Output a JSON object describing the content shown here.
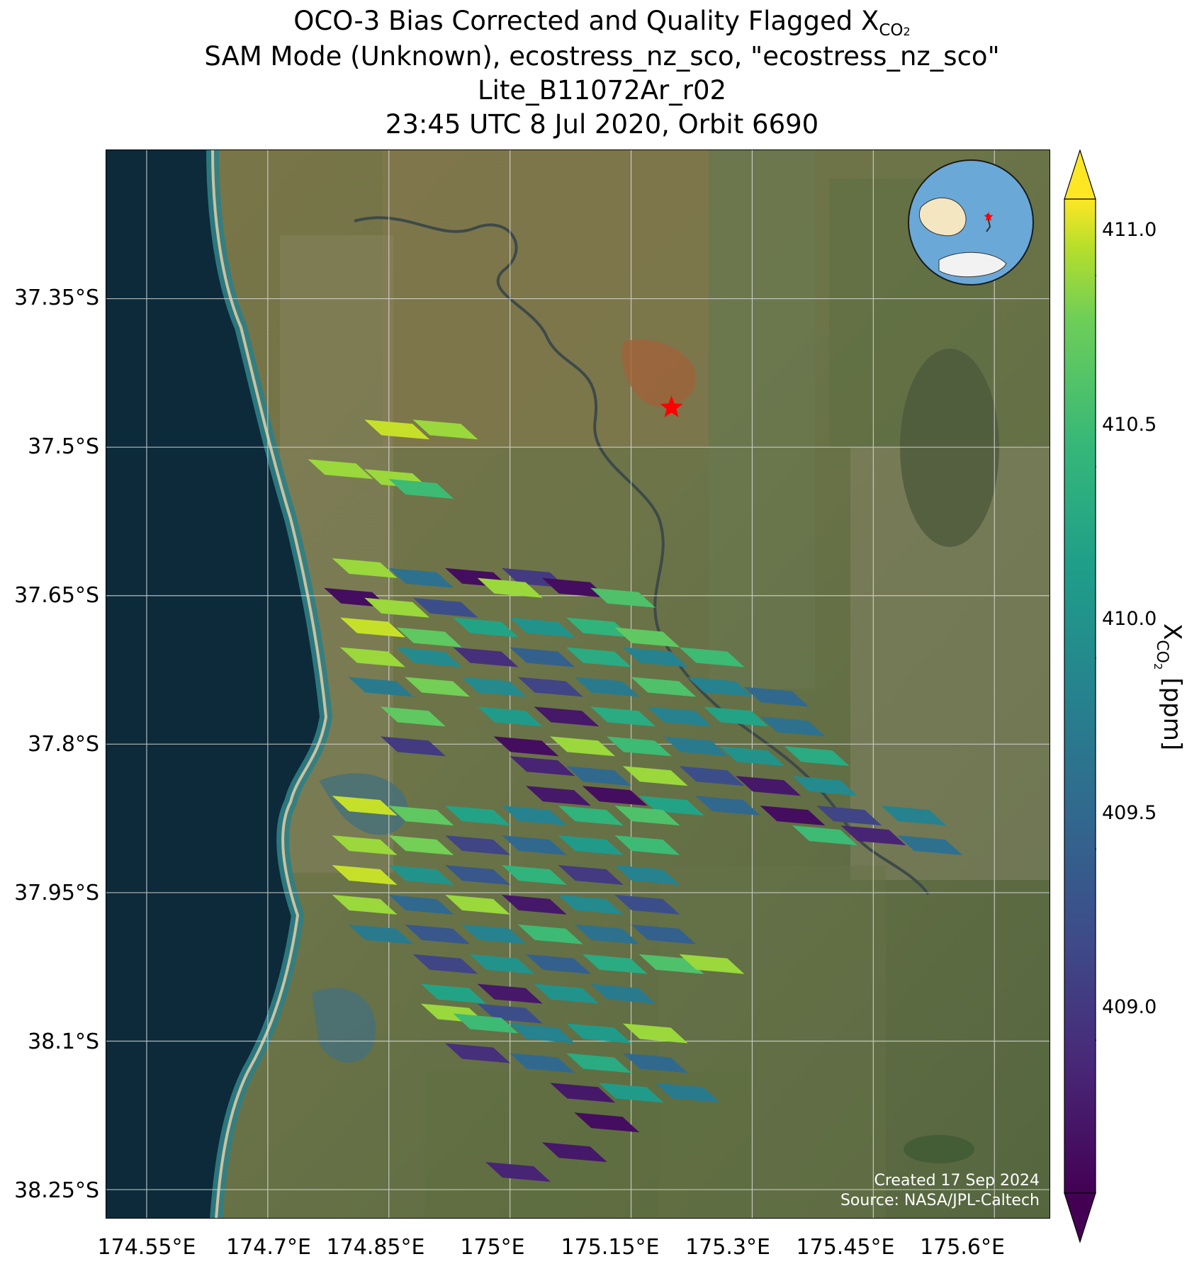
{
  "figure": {
    "title_line1_prefix": "OCO-3 Bias Corrected and Quality Flagged X",
    "title_line1_sub": "CO",
    "title_line1_sub2": "2",
    "title_line2": "SAM Mode (Unknown), ecostress_nz_sco, \"ecostress_nz_sco\"",
    "title_line3": "Lite_B11072Ar_r02",
    "title_line4": "23:45 UTC 8 Jul 2020, Orbit 6690"
  },
  "map": {
    "lat_labels": [
      "37.35°S",
      "37.5°S",
      "37.65°S",
      "37.8°S",
      "37.95°S",
      "38.1°S",
      "38.25°S"
    ],
    "lon_labels": [
      "174.55°E",
      "174.7°E",
      "174.85°E",
      "175°E",
      "175.15°E",
      "175.3°E",
      "175.45°E",
      "175.6°E"
    ],
    "credit_line1": "Created 17 Sep 2024",
    "credit_line2": "Source: NASA/JPL-Caltech",
    "target_marker": "red-star",
    "colors": {
      "ocean": "#0c2a3a",
      "coast": "#2f7f86",
      "land": "#6f7a4e",
      "target": "#ff0000"
    }
  },
  "colorbar": {
    "ticks": [
      "411.0",
      "410.5",
      "410.0",
      "409.5",
      "409.0"
    ],
    "label_prefix": "X",
    "label_sub": "CO",
    "label_sub2": "2",
    "label_suffix": " [ppm]",
    "colormap": "viridis",
    "extend": "both"
  },
  "chart_data": {
    "type": "heatmap",
    "variable": "XCO2",
    "units": "ppm",
    "vmin": 408.6,
    "vmax": 411.2,
    "lon_range": [
      174.5,
      175.67
    ],
    "lat_range": [
      -38.28,
      -37.2
    ],
    "target": {
      "lon": 175.2,
      "lat": -37.46
    },
    "soundings": [
      {
        "lon": 174.86,
        "lat": -37.48,
        "xco2": 411.1
      },
      {
        "lon": 174.92,
        "lat": -37.48,
        "xco2": 411.0
      },
      {
        "lon": 174.79,
        "lat": -37.52,
        "xco2": 411.0
      },
      {
        "lon": 174.86,
        "lat": -37.53,
        "xco2": 411.0
      },
      {
        "lon": 174.89,
        "lat": -37.54,
        "xco2": 410.6
      },
      {
        "lon": 174.82,
        "lat": -37.62,
        "xco2": 411.0
      },
      {
        "lon": 174.89,
        "lat": -37.63,
        "xco2": 409.7
      },
      {
        "lon": 174.96,
        "lat": -37.63,
        "xco2": 408.7
      },
      {
        "lon": 175.03,
        "lat": -37.63,
        "xco2": 409.1
      },
      {
        "lon": 175.0,
        "lat": -37.64,
        "xco2": 411.0
      },
      {
        "lon": 175.08,
        "lat": -37.64,
        "xco2": 408.7
      },
      {
        "lon": 175.14,
        "lat": -37.65,
        "xco2": 410.7
      },
      {
        "lon": 174.81,
        "lat": -37.65,
        "xco2": 408.7
      },
      {
        "lon": 174.86,
        "lat": -37.66,
        "xco2": 411.0
      },
      {
        "lon": 174.92,
        "lat": -37.66,
        "xco2": 409.3
      },
      {
        "lon": 174.83,
        "lat": -37.68,
        "xco2": 411.1
      },
      {
        "lon": 174.9,
        "lat": -37.69,
        "xco2": 410.8
      },
      {
        "lon": 174.97,
        "lat": -37.68,
        "xco2": 410.3
      },
      {
        "lon": 175.04,
        "lat": -37.68,
        "xco2": 410.1
      },
      {
        "lon": 175.11,
        "lat": -37.68,
        "xco2": 410.5
      },
      {
        "lon": 175.17,
        "lat": -37.69,
        "xco2": 410.8
      },
      {
        "lon": 174.83,
        "lat": -37.71,
        "xco2": 411.0
      },
      {
        "lon": 174.9,
        "lat": -37.71,
        "xco2": 410.0
      },
      {
        "lon": 174.97,
        "lat": -37.71,
        "xco2": 409.0
      },
      {
        "lon": 175.04,
        "lat": -37.71,
        "xco2": 409.5
      },
      {
        "lon": 175.11,
        "lat": -37.71,
        "xco2": 410.4
      },
      {
        "lon": 175.18,
        "lat": -37.71,
        "xco2": 409.9
      },
      {
        "lon": 175.25,
        "lat": -37.71,
        "xco2": 410.6
      },
      {
        "lon": 174.84,
        "lat": -37.74,
        "xco2": 409.8
      },
      {
        "lon": 174.91,
        "lat": -37.74,
        "xco2": 410.9
      },
      {
        "lon": 174.98,
        "lat": -37.74,
        "xco2": 410.0
      },
      {
        "lon": 175.05,
        "lat": -37.74,
        "xco2": 409.2
      },
      {
        "lon": 175.12,
        "lat": -37.74,
        "xco2": 409.8
      },
      {
        "lon": 175.19,
        "lat": -37.74,
        "xco2": 410.7
      },
      {
        "lon": 175.26,
        "lat": -37.74,
        "xco2": 409.9
      },
      {
        "lon": 175.33,
        "lat": -37.75,
        "xco2": 409.6
      },
      {
        "lon": 174.88,
        "lat": -37.77,
        "xco2": 410.8
      },
      {
        "lon": 175.0,
        "lat": -37.77,
        "xco2": 410.2
      },
      {
        "lon": 175.07,
        "lat": -37.77,
        "xco2": 408.8
      },
      {
        "lon": 175.14,
        "lat": -37.77,
        "xco2": 410.4
      },
      {
        "lon": 175.21,
        "lat": -37.77,
        "xco2": 409.9
      },
      {
        "lon": 175.28,
        "lat": -37.77,
        "xco2": 410.3
      },
      {
        "lon": 175.35,
        "lat": -37.78,
        "xco2": 409.7
      },
      {
        "lon": 174.88,
        "lat": -37.8,
        "xco2": 409.1
      },
      {
        "lon": 175.02,
        "lat": -37.8,
        "xco2": 408.7
      },
      {
        "lon": 175.09,
        "lat": -37.8,
        "xco2": 411.0
      },
      {
        "lon": 175.16,
        "lat": -37.8,
        "xco2": 410.6
      },
      {
        "lon": 175.23,
        "lat": -37.8,
        "xco2": 409.8
      },
      {
        "lon": 175.3,
        "lat": -37.81,
        "xco2": 410.1
      },
      {
        "lon": 175.38,
        "lat": -37.81,
        "xco2": 410.4
      },
      {
        "lon": 175.04,
        "lat": -37.82,
        "xco2": 408.9
      },
      {
        "lon": 175.11,
        "lat": -37.83,
        "xco2": 409.6
      },
      {
        "lon": 175.18,
        "lat": -37.83,
        "xco2": 411.0
      },
      {
        "lon": 175.25,
        "lat": -37.83,
        "xco2": 409.3
      },
      {
        "lon": 175.32,
        "lat": -37.84,
        "xco2": 408.8
      },
      {
        "lon": 175.39,
        "lat": -37.84,
        "xco2": 410.0
      },
      {
        "lon": 175.06,
        "lat": -37.85,
        "xco2": 408.8
      },
      {
        "lon": 175.13,
        "lat": -37.85,
        "xco2": 408.7
      },
      {
        "lon": 175.2,
        "lat": -37.86,
        "xco2": 410.3
      },
      {
        "lon": 175.27,
        "lat": -37.86,
        "xco2": 409.6
      },
      {
        "lon": 175.35,
        "lat": -37.87,
        "xco2": 408.7
      },
      {
        "lon": 175.42,
        "lat": -37.87,
        "xco2": 409.2
      },
      {
        "lon": 175.5,
        "lat": -37.87,
        "xco2": 409.9
      },
      {
        "lon": 175.39,
        "lat": -37.89,
        "xco2": 410.6
      },
      {
        "lon": 175.45,
        "lat": -37.89,
        "xco2": 408.9
      },
      {
        "lon": 175.52,
        "lat": -37.9,
        "xco2": 409.7
      },
      {
        "lon": 174.82,
        "lat": -37.86,
        "xco2": 411.1
      },
      {
        "lon": 174.89,
        "lat": -37.87,
        "xco2": 410.8
      },
      {
        "lon": 174.96,
        "lat": -37.87,
        "xco2": 410.3
      },
      {
        "lon": 175.03,
        "lat": -37.87,
        "xco2": 409.9
      },
      {
        "lon": 175.1,
        "lat": -37.87,
        "xco2": 410.5
      },
      {
        "lon": 175.17,
        "lat": -37.87,
        "xco2": 410.7
      },
      {
        "lon": 174.82,
        "lat": -37.9,
        "xco2": 411.0
      },
      {
        "lon": 174.89,
        "lat": -37.9,
        "xco2": 410.9
      },
      {
        "lon": 174.96,
        "lat": -37.9,
        "xco2": 409.2
      },
      {
        "lon": 175.03,
        "lat": -37.9,
        "xco2": 409.6
      },
      {
        "lon": 175.1,
        "lat": -37.9,
        "xco2": 410.2
      },
      {
        "lon": 175.17,
        "lat": -37.9,
        "xco2": 410.6
      },
      {
        "lon": 174.82,
        "lat": -37.93,
        "xco2": 411.1
      },
      {
        "lon": 174.89,
        "lat": -37.93,
        "xco2": 410.1
      },
      {
        "lon": 174.96,
        "lat": -37.93,
        "xco2": 409.4
      },
      {
        "lon": 175.03,
        "lat": -37.93,
        "xco2": 410.5
      },
      {
        "lon": 175.1,
        "lat": -37.93,
        "xco2": 409.1
      },
      {
        "lon": 175.17,
        "lat": -37.93,
        "xco2": 409.9
      },
      {
        "lon": 174.82,
        "lat": -37.96,
        "xco2": 411.0
      },
      {
        "lon": 174.89,
        "lat": -37.96,
        "xco2": 409.6
      },
      {
        "lon": 174.96,
        "lat": -37.96,
        "xco2": 411.0
      },
      {
        "lon": 175.03,
        "lat": -37.96,
        "xco2": 408.8
      },
      {
        "lon": 175.1,
        "lat": -37.96,
        "xco2": 410.0
      },
      {
        "lon": 175.17,
        "lat": -37.96,
        "xco2": 409.3
      },
      {
        "lon": 174.84,
        "lat": -37.99,
        "xco2": 409.8
      },
      {
        "lon": 174.91,
        "lat": -37.99,
        "xco2": 409.4
      },
      {
        "lon": 174.98,
        "lat": -37.99,
        "xco2": 409.9
      },
      {
        "lon": 175.05,
        "lat": -37.99,
        "xco2": 410.6
      },
      {
        "lon": 175.12,
        "lat": -37.99,
        "xco2": 409.7
      },
      {
        "lon": 175.19,
        "lat": -37.99,
        "xco2": 409.5
      },
      {
        "lon": 174.92,
        "lat": -38.02,
        "xco2": 409.2
      },
      {
        "lon": 174.99,
        "lat": -38.02,
        "xco2": 410.1
      },
      {
        "lon": 175.06,
        "lat": -38.02,
        "xco2": 409.5
      },
      {
        "lon": 175.13,
        "lat": -38.02,
        "xco2": 410.4
      },
      {
        "lon": 175.2,
        "lat": -38.02,
        "xco2": 410.7
      },
      {
        "lon": 175.25,
        "lat": -38.02,
        "xco2": 411.0
      },
      {
        "lon": 174.93,
        "lat": -38.05,
        "xco2": 410.3
      },
      {
        "lon": 175.0,
        "lat": -38.05,
        "xco2": 408.8
      },
      {
        "lon": 175.07,
        "lat": -38.05,
        "xco2": 410.1
      },
      {
        "lon": 175.14,
        "lat": -38.05,
        "xco2": 409.8
      },
      {
        "lon": 175.0,
        "lat": -38.07,
        "xco2": 409.3
      },
      {
        "lon": 174.93,
        "lat": -38.07,
        "xco2": 411.0
      },
      {
        "lon": 174.97,
        "lat": -38.08,
        "xco2": 410.6
      },
      {
        "lon": 175.04,
        "lat": -38.09,
        "xco2": 409.9
      },
      {
        "lon": 175.11,
        "lat": -38.09,
        "xco2": 410.2
      },
      {
        "lon": 175.18,
        "lat": -38.09,
        "xco2": 411.0
      },
      {
        "lon": 174.96,
        "lat": -38.11,
        "xco2": 409.0
      },
      {
        "lon": 175.04,
        "lat": -38.12,
        "xco2": 409.6
      },
      {
        "lon": 175.11,
        "lat": -38.12,
        "xco2": 410.4
      },
      {
        "lon": 175.18,
        "lat": -38.12,
        "xco2": 409.6
      },
      {
        "lon": 175.09,
        "lat": -38.15,
        "xco2": 408.8
      },
      {
        "lon": 175.15,
        "lat": -38.15,
        "xco2": 410.2
      },
      {
        "lon": 175.22,
        "lat": -38.15,
        "xco2": 409.8
      },
      {
        "lon": 175.12,
        "lat": -38.18,
        "xco2": 408.7
      },
      {
        "lon": 175.08,
        "lat": -38.21,
        "xco2": 408.8
      },
      {
        "lon": 175.01,
        "lat": -38.23,
        "xco2": 408.9
      }
    ]
  }
}
